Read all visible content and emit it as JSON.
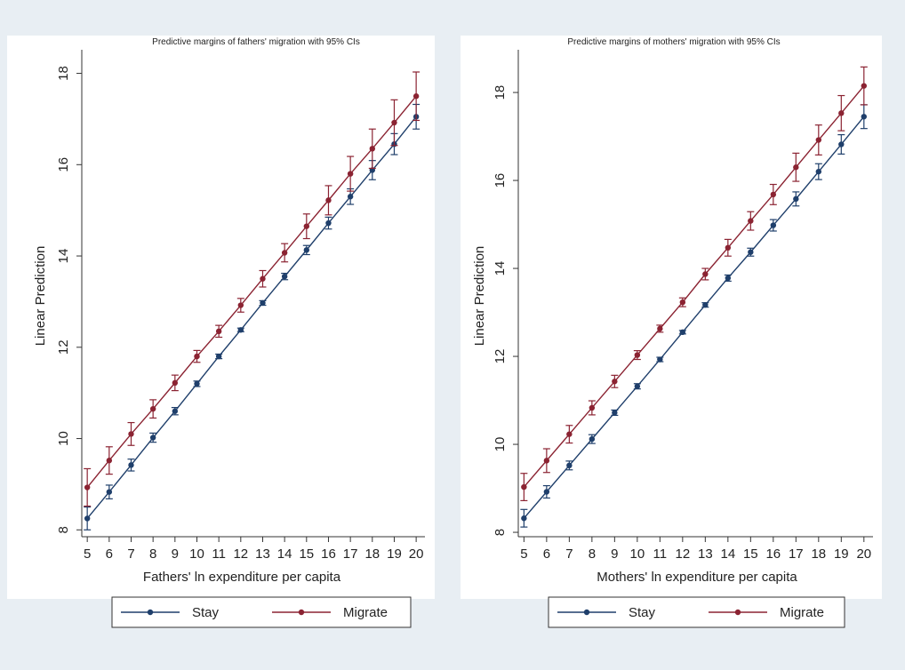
{
  "chart_data": [
    {
      "type": "line",
      "title": "Predictive margins of  fathers' migration with 95% CIs",
      "xlabel": "Fathers' ln expenditure per capita",
      "ylabel": "Linear Prediction",
      "xlim": [
        4.75,
        20.4
      ],
      "ylim": [
        7.85,
        18.4
      ],
      "xticks": [
        5,
        6,
        7,
        8,
        9,
        10,
        11,
        12,
        13,
        14,
        15,
        16,
        17,
        18,
        19,
        20
      ],
      "yticks": [
        8,
        10,
        12,
        14,
        16,
        18
      ],
      "x": [
        5,
        6,
        7,
        8,
        9,
        10,
        11,
        12,
        13,
        14,
        15,
        16,
        17,
        18,
        19,
        20
      ],
      "grid": false,
      "legend": "bottom",
      "series": [
        {
          "name": "Stay",
          "color": "#1f3f6b",
          "values": [
            8.25,
            8.83,
            9.42,
            10.02,
            10.6,
            11.2,
            11.8,
            12.38,
            12.97,
            13.55,
            14.13,
            14.72,
            15.3,
            15.88,
            16.45,
            17.05
          ],
          "ci_low": [
            8.0,
            8.68,
            9.29,
            9.92,
            10.52,
            11.14,
            11.75,
            12.34,
            12.92,
            13.48,
            14.03,
            14.59,
            15.13,
            15.67,
            16.22,
            16.78
          ],
          "ci_high": [
            8.5,
            8.98,
            9.55,
            10.12,
            10.68,
            11.26,
            11.85,
            12.42,
            13.02,
            13.62,
            14.23,
            14.85,
            15.47,
            16.09,
            16.68,
            17.32
          ]
        },
        {
          "name": "Migrate",
          "color": "#8b2332",
          "values": [
            8.93,
            9.52,
            10.1,
            10.65,
            11.22,
            11.8,
            12.35,
            12.92,
            13.5,
            14.07,
            14.65,
            15.22,
            15.8,
            16.35,
            16.92,
            17.5
          ],
          "ci_low": [
            8.52,
            9.22,
            9.85,
            10.45,
            11.05,
            11.67,
            12.22,
            12.77,
            13.32,
            13.87,
            14.38,
            14.9,
            15.42,
            15.92,
            16.42,
            16.97
          ],
          "ci_high": [
            9.34,
            9.82,
            10.35,
            10.85,
            11.39,
            11.93,
            12.48,
            13.07,
            13.68,
            14.27,
            14.92,
            15.54,
            16.18,
            16.78,
            17.42,
            18.03
          ]
        }
      ]
    },
    {
      "type": "line",
      "title": "Predictive margins of mothers' migration with 95% CIs",
      "xlabel": "Mothers' ln expenditure per capita",
      "ylabel": "Linear Prediction",
      "xlim": [
        4.75,
        20.4
      ],
      "ylim": [
        7.9,
        18.85
      ],
      "xticks": [
        5,
        6,
        7,
        8,
        9,
        10,
        11,
        12,
        13,
        14,
        15,
        16,
        17,
        18,
        19,
        20
      ],
      "yticks": [
        8,
        10,
        12,
        14,
        16,
        18
      ],
      "x": [
        5,
        6,
        7,
        8,
        9,
        10,
        11,
        12,
        13,
        14,
        15,
        16,
        17,
        18,
        19,
        20
      ],
      "grid": false,
      "legend": "bottom",
      "series": [
        {
          "name": "Stay",
          "color": "#1f3f6b",
          "values": [
            8.32,
            8.92,
            9.52,
            10.12,
            10.72,
            11.32,
            11.93,
            12.55,
            13.17,
            13.78,
            14.37,
            14.98,
            15.58,
            16.2,
            16.82,
            17.45
          ],
          "ci_low": [
            8.12,
            8.78,
            9.42,
            10.02,
            10.66,
            11.26,
            11.88,
            12.51,
            13.12,
            13.71,
            14.28,
            14.85,
            15.42,
            16.02,
            16.6,
            17.18
          ],
          "ci_high": [
            8.52,
            9.06,
            9.62,
            10.22,
            10.78,
            11.38,
            11.98,
            12.59,
            13.22,
            13.85,
            14.46,
            15.11,
            15.74,
            16.38,
            17.04,
            17.72
          ]
        },
        {
          "name": "Migrate",
          "color": "#8b2332",
          "values": [
            9.03,
            9.63,
            10.23,
            10.83,
            11.43,
            12.03,
            12.63,
            13.23,
            13.87,
            14.47,
            15.08,
            15.68,
            16.3,
            16.92,
            17.53,
            18.15
          ],
          "ci_low": [
            8.72,
            9.36,
            10.03,
            10.67,
            11.29,
            11.93,
            12.55,
            13.13,
            13.74,
            14.28,
            14.87,
            15.45,
            15.98,
            16.58,
            17.13,
            17.72
          ],
          "ci_high": [
            9.34,
            9.9,
            10.43,
            10.99,
            11.57,
            12.13,
            12.71,
            13.33,
            14.0,
            14.66,
            15.29,
            15.91,
            16.62,
            17.26,
            17.93,
            18.58
          ]
        }
      ]
    }
  ]
}
